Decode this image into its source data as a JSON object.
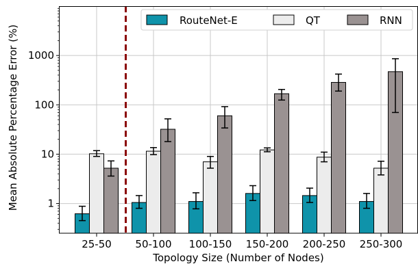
{
  "chart_data": {
    "type": "bar",
    "title": "",
    "xlabel": "Topology Size (Number of Nodes)",
    "ylabel": "Mean Absolute Percentage Error (%)",
    "yscale": "log",
    "ylim": [
      0.25,
      10000
    ],
    "yticks": [
      1,
      10,
      100,
      1000
    ],
    "ytick_labels": [
      "1",
      "10",
      "100",
      "1000"
    ],
    "grid": true,
    "legend_position": "top",
    "categories": [
      "25-50",
      "50-100",
      "100-150",
      "150-200",
      "200-250",
      "250-300"
    ],
    "reference_line": {
      "between": [
        "25-50",
        "50-100"
      ],
      "style": "dashed",
      "color": "#8b0000"
    },
    "series": [
      {
        "name": "RouteNet-E",
        "color": "#0f93aa",
        "values": [
          0.62,
          1.05,
          1.1,
          1.6,
          1.45,
          1.1
        ],
        "err_low": [
          0.45,
          0.8,
          0.78,
          1.15,
          1.05,
          0.8
        ],
        "err_high": [
          0.88,
          1.45,
          1.65,
          2.3,
          2.05,
          1.6
        ]
      },
      {
        "name": "QT",
        "color": "#ececec",
        "values": [
          10.2,
          11.5,
          7.0,
          12.2,
          8.7,
          5.2
        ],
        "err_low": [
          9.0,
          9.8,
          5.2,
          11.2,
          7.0,
          3.8
        ],
        "err_high": [
          11.8,
          13.6,
          9.0,
          13.4,
          11.0,
          7.2
        ]
      },
      {
        "name": "RNN",
        "color": "#9a9292",
        "values": [
          5.2,
          32,
          60,
          168,
          285,
          470
        ],
        "err_low": [
          3.6,
          18,
          34,
          125,
          190,
          70
        ],
        "err_high": [
          7.3,
          52,
          92,
          205,
          420,
          860
        ]
      }
    ]
  }
}
